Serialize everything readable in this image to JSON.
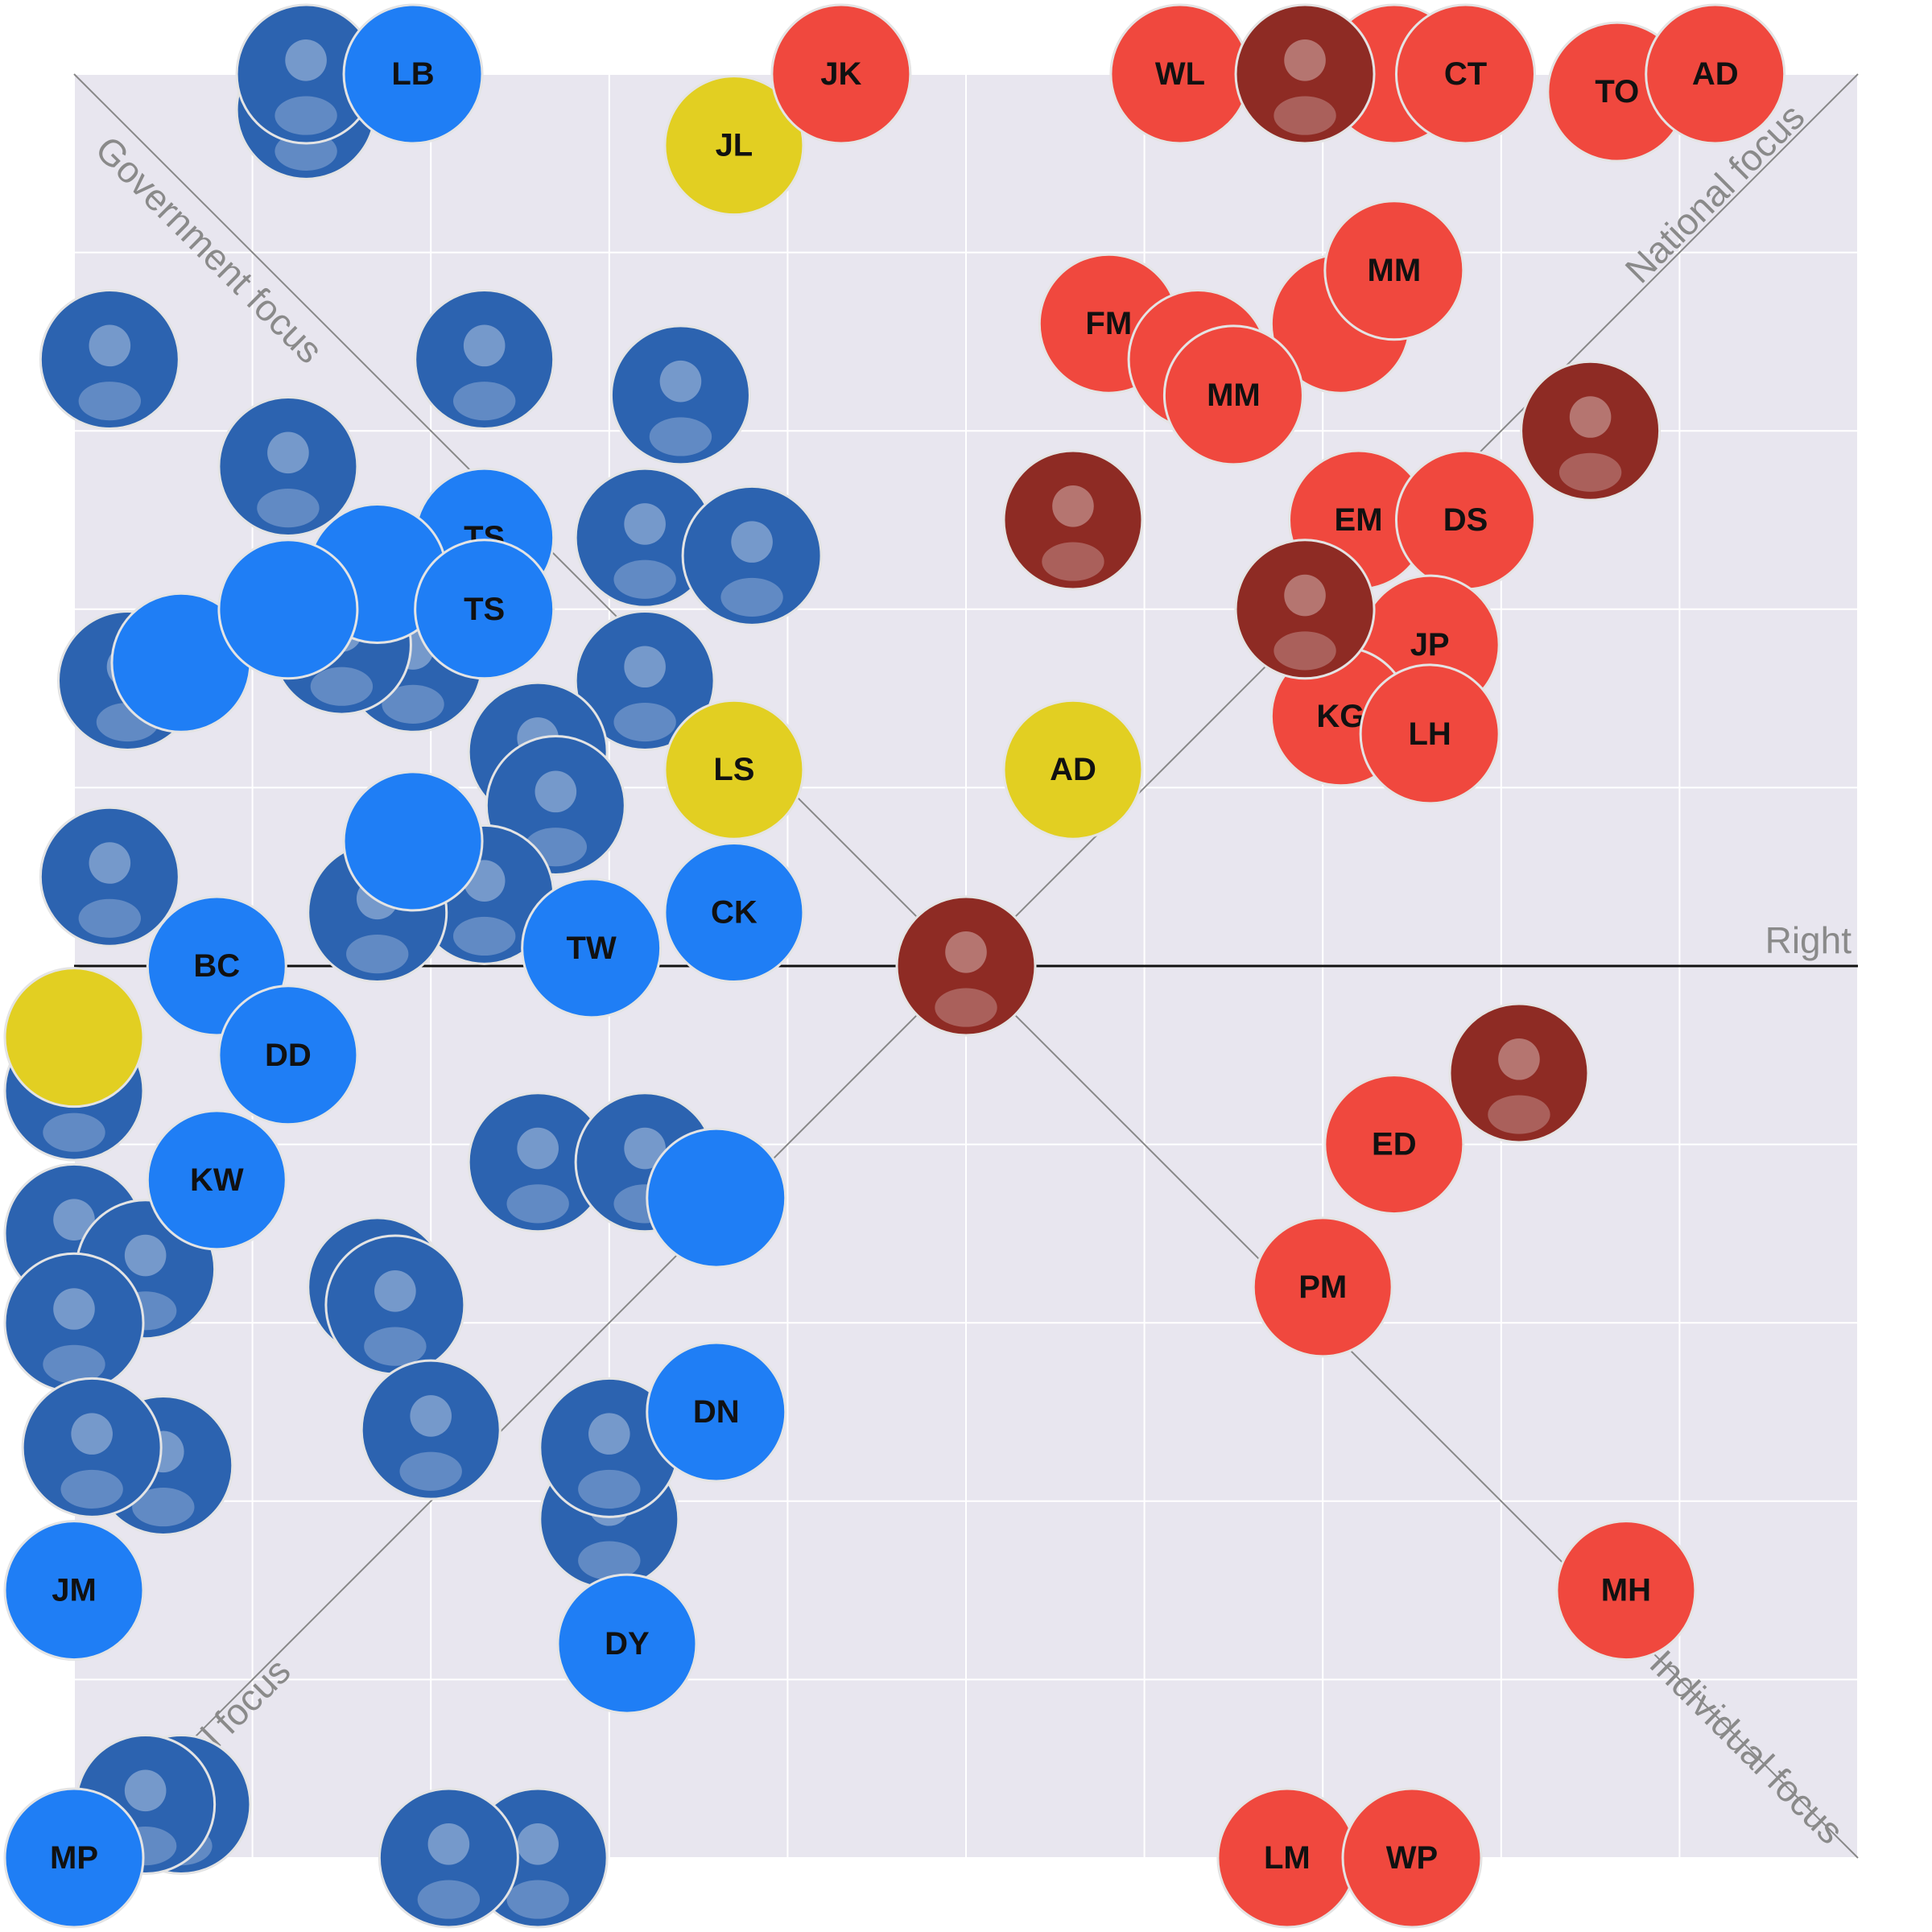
{
  "chart_data": {
    "type": "scatter",
    "xlim": [
      -5,
      5
    ],
    "ylim": [
      -5,
      5
    ],
    "xticks": [
      -5,
      -4,
      -3,
      -2,
      -1,
      0,
      1,
      2,
      3,
      4,
      5
    ],
    "yticks": [
      -5,
      -4,
      -3,
      -2,
      -1,
      0,
      1,
      2,
      3,
      4,
      5
    ],
    "grid": true,
    "annotations": [
      "Government focus",
      "National focus",
      "Individual focus",
      "Local focus",
      "Right"
    ],
    "series": [
      {
        "color": "#2c63b0",
        "style": "photo",
        "x": [
          -3.7,
          -3.7,
          -4.8,
          -2.7,
          -1.6,
          -3.8,
          -1.8,
          -1.2,
          -1.8,
          -3.1,
          -4.7,
          -2.4,
          -2.3,
          -2.7,
          -4.8,
          -5.0,
          -2.4,
          -1.8,
          -3.3,
          -3.2,
          -5.0,
          -4.6,
          -5.0,
          -4.5,
          -4.9,
          -3.0,
          -2.0,
          -2.0,
          -4.4,
          -4.6,
          -2.4,
          -2.9,
          -3.5,
          -3.3
        ],
        "values": [
          4.8,
          5.0,
          3.4,
          3.4,
          3.2,
          2.8,
          2.4,
          2.3,
          1.6,
          1.7,
          1.6,
          1.2,
          0.9,
          0.4,
          0.5,
          -0.7,
          -1.1,
          -1.1,
          -1.8,
          -1.9,
          -1.5,
          -1.7,
          -2.0,
          -2.8,
          -2.7,
          -2.6,
          -3.1,
          -2.7,
          -4.7,
          -4.7,
          -5.0,
          -5.0,
          1.8,
          0.3
        ]
      },
      {
        "color": "#1f7ef5",
        "style": "initials",
        "x": [
          -3.1,
          -2.7,
          -3.3,
          -2.7,
          -4.4,
          -3.8,
          -3.1,
          -1.3,
          -2.1,
          -4.2,
          -3.8,
          -4.2,
          -1.4,
          -1.4,
          -5.0,
          -1.9,
          -5.0
        ],
        "values": [
          5.0,
          2.4,
          2.2,
          2.0,
          1.7,
          2.0,
          0.7,
          0.3,
          0.1,
          0.0,
          -0.5,
          -1.2,
          -1.3,
          -2.5,
          -3.5,
          -3.8,
          -5.0
        ],
        "labels": [
          "LB",
          "TS",
          null,
          "TS",
          null,
          null,
          null,
          "CK",
          "TW",
          "BC",
          "DD",
          "KW",
          null,
          "DN",
          "JM",
          "DY",
          "MP"
        ]
      },
      {
        "color": "#e2cf22",
        "style": "initials",
        "x": [
          -1.3,
          -1.3,
          0.6,
          -5.0
        ],
        "values": [
          4.6,
          1.1,
          1.1,
          -0.4
        ],
        "labels": [
          "JL",
          "LS",
          "AD",
          null
        ]
      },
      {
        "color": "#f0483e",
        "style": "initials",
        "x": [
          -0.7,
          1.2,
          2.4,
          2.8,
          3.65,
          4.2,
          0.8,
          2.1,
          2.4,
          1.3,
          1.5,
          2.2,
          2.8,
          2.6,
          2.1,
          2.6,
          2.4,
          2.0,
          3.7,
          1.8,
          2.5
        ],
        "values": [
          5.0,
          5.0,
          5.0,
          5.0,
          4.9,
          5.0,
          3.6,
          3.6,
          3.9,
          3.4,
          3.2,
          2.5,
          2.5,
          1.8,
          1.4,
          1.3,
          -1.0,
          -1.8,
          -3.5,
          -5.0,
          -5.0
        ],
        "labels": [
          "JK",
          "WL",
          null,
          "CT",
          "TO",
          "AD",
          "FM",
          null,
          "MM",
          null,
          "MM",
          "EM",
          "DS",
          "JP",
          "KG",
          "LH",
          "ED",
          "PM",
          "MH",
          "LM",
          "WP"
        ]
      },
      {
        "color": "#8e2b24",
        "style": "photo",
        "x": [
          1.9,
          3.5,
          0.6,
          1.9,
          0.0,
          3.1
        ],
        "values": [
          5.0,
          3.0,
          2.5,
          2.0,
          0.0,
          -0.6
        ]
      }
    ]
  }
}
